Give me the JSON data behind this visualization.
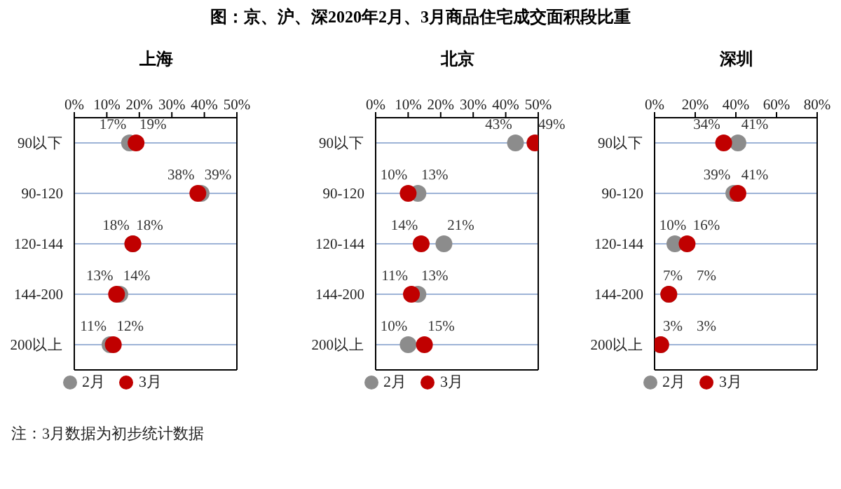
{
  "chart_data": [
    {
      "type": "scatter",
      "orientation": "horizontal",
      "title": "上海",
      "categories": [
        "90以下",
        "90-120",
        "120-144",
        "144-200",
        "200以上"
      ],
      "series": [
        {
          "name": "2月",
          "color": "#8c8c8c",
          "values": [
            17,
            39,
            18,
            14,
            11
          ],
          "value_labels": [
            "17%",
            "39%",
            "18%",
            "14%",
            "11%"
          ]
        },
        {
          "name": "3月",
          "color": "#c00000",
          "values": [
            19,
            38,
            18,
            13,
            12
          ],
          "value_labels": [
            "19%",
            "38%",
            "18%",
            "13%",
            "12%"
          ]
        }
      ],
      "xlim": [
        0,
        50
      ],
      "xticks": [
        {
          "value": 0,
          "label": "0%"
        },
        {
          "value": 10,
          "label": "10%"
        },
        {
          "value": 20,
          "label": "20%"
        },
        {
          "value": 30,
          "label": "30%"
        },
        {
          "value": 40,
          "label": "40%"
        },
        {
          "value": 50,
          "label": "50%"
        }
      ],
      "grid": "y",
      "legend": "bottom",
      "marker": "circle",
      "annotations": [
        "注：3月数据为初步统计数据"
      ]
    },
    {
      "type": "scatter",
      "orientation": "horizontal",
      "title": "图：京、沪、深2020年2月、3月商品住宅成交面积段比重",
      "subtitle": "北京",
      "categories": [
        "90以下",
        "90-120",
        "120-144",
        "144-200",
        "200以上"
      ],
      "series": [
        {
          "name": "2月",
          "color": "#8c8c8c",
          "values": [
            43,
            13,
            21,
            13,
            10
          ],
          "value_labels": [
            "43%",
            "13%",
            "21%",
            "13%",
            "10%"
          ]
        },
        {
          "name": "3月",
          "color": "#c00000",
          "values": [
            49,
            10,
            14,
            11,
            15
          ],
          "value_labels": [
            "49%",
            "10%",
            "14%",
            "11%",
            "15%"
          ]
        }
      ],
      "xlim": [
        0,
        50
      ],
      "xticks": [
        {
          "value": 0,
          "label": "0%"
        },
        {
          "value": 10,
          "label": "10%"
        },
        {
          "value": 20,
          "label": "20%"
        },
        {
          "value": 30,
          "label": "30%"
        },
        {
          "value": 40,
          "label": "40%"
        },
        {
          "value": 50,
          "label": "50%"
        }
      ],
      "grid": "y",
      "legend": "bottom",
      "marker": "circle"
    },
    {
      "type": "scatter",
      "orientation": "horizontal",
      "title": "深圳",
      "categories": [
        "90以下",
        "90-120",
        "120-144",
        "144-200",
        "200以上"
      ],
      "series": [
        {
          "name": "2月",
          "color": "#8c8c8c",
          "values": [
            41,
            39,
            10,
            7,
            3
          ],
          "value_labels": [
            "41%",
            "39%",
            "10%",
            "7%",
            "3%"
          ]
        },
        {
          "name": "3月",
          "color": "#c00000",
          "values": [
            34,
            41,
            16,
            7,
            3
          ],
          "value_labels": [
            "34%",
            "41%",
            "16%",
            "7%",
            "3%"
          ]
        }
      ],
      "xlim": [
        0,
        80
      ],
      "xticks": [
        {
          "value": 0,
          "label": "0%"
        },
        {
          "value": 20,
          "label": "20%"
        },
        {
          "value": 40,
          "label": "40%"
        },
        {
          "value": 60,
          "label": "60%"
        },
        {
          "value": 80,
          "label": "80%"
        }
      ],
      "grid": "y",
      "legend": "bottom",
      "marker": "circle"
    }
  ]
}
